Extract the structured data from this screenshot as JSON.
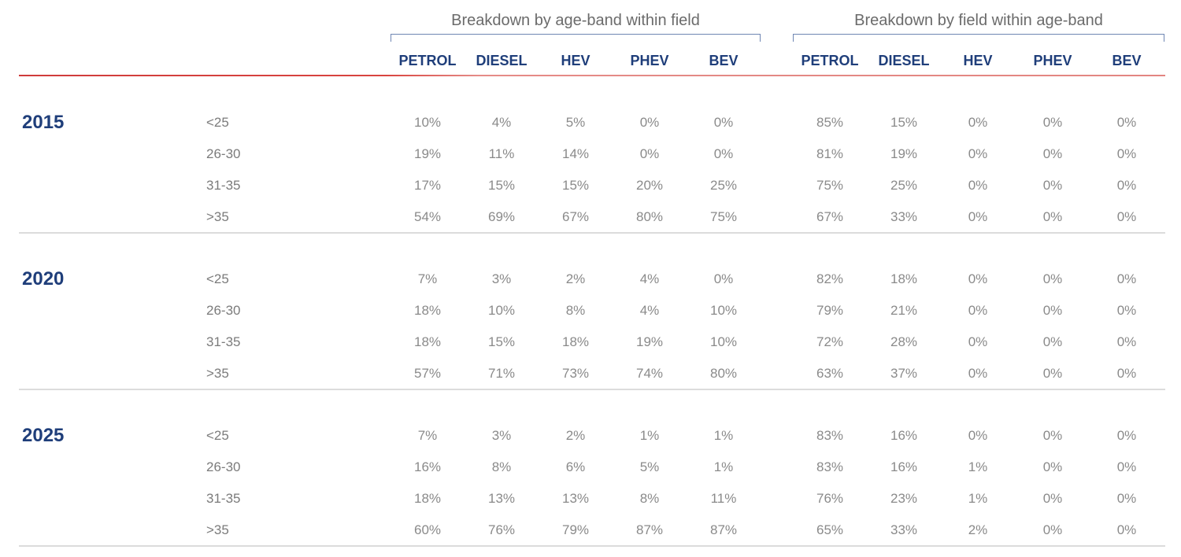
{
  "header": {
    "group_left_title": "Breakdown by age-band within field",
    "group_right_title": "Breakdown by field within age-band"
  },
  "chart_data": {
    "type": "table",
    "column_groups": [
      {
        "title": "Breakdown by age-band within field",
        "columns": [
          "PETROL",
          "DIESEL",
          "HEV",
          "PHEV",
          "BEV"
        ]
      },
      {
        "title": "Breakdown by field within age-band",
        "columns": [
          "PETROL",
          "DIESEL",
          "HEV",
          "PHEV",
          "BEV"
        ]
      }
    ],
    "sections": [
      {
        "year": "2015",
        "rows": [
          {
            "band": "<25",
            "values": [
              "10%",
              "4%",
              "5%",
              "0%",
              "0%",
              "85%",
              "15%",
              "0%",
              "0%",
              "0%"
            ]
          },
          {
            "band": "26-30",
            "values": [
              "19%",
              "11%",
              "14%",
              "0%",
              "0%",
              "81%",
              "19%",
              "0%",
              "0%",
              "0%"
            ]
          },
          {
            "band": "31-35",
            "values": [
              "17%",
              "15%",
              "15%",
              "20%",
              "25%",
              "75%",
              "25%",
              "0%",
              "0%",
              "0%"
            ]
          },
          {
            "band": ">35",
            "values": [
              "54%",
              "69%",
              "67%",
              "80%",
              "75%",
              "67%",
              "33%",
              "0%",
              "0%",
              "0%"
            ]
          }
        ]
      },
      {
        "year": "2020",
        "rows": [
          {
            "band": "<25",
            "values": [
              "7%",
              "3%",
              "2%",
              "4%",
              "0%",
              "82%",
              "18%",
              "0%",
              "0%",
              "0%"
            ]
          },
          {
            "band": "26-30",
            "values": [
              "18%",
              "10%",
              "8%",
              "4%",
              "10%",
              "79%",
              "21%",
              "0%",
              "0%",
              "0%"
            ]
          },
          {
            "band": "31-35",
            "values": [
              "18%",
              "15%",
              "18%",
              "19%",
              "10%",
              "72%",
              "28%",
              "0%",
              "0%",
              "0%"
            ]
          },
          {
            "band": ">35",
            "values": [
              "57%",
              "71%",
              "73%",
              "74%",
              "80%",
              "63%",
              "37%",
              "0%",
              "0%",
              "0%"
            ]
          }
        ]
      },
      {
        "year": "2025",
        "rows": [
          {
            "band": "<25",
            "values": [
              "7%",
              "3%",
              "2%",
              "1%",
              "1%",
              "83%",
              "16%",
              "0%",
              "0%",
              "0%"
            ]
          },
          {
            "band": "26-30",
            "values": [
              "16%",
              "8%",
              "6%",
              "5%",
              "1%",
              "83%",
              "16%",
              "1%",
              "0%",
              "0%"
            ]
          },
          {
            "band": "31-35",
            "values": [
              "18%",
              "13%",
              "13%",
              "8%",
              "11%",
              "76%",
              "23%",
              "1%",
              "0%",
              "0%"
            ]
          },
          {
            "band": ">35",
            "values": [
              "60%",
              "76%",
              "79%",
              "87%",
              "87%",
              "65%",
              "33%",
              "2%",
              "0%",
              "0%"
            ]
          }
        ]
      }
    ]
  },
  "colors": {
    "heading_blue": "#1f3e7a",
    "bracket_blue": "#6f86b3",
    "rule_red": "#d9443f",
    "value_gray": "#8a8a8a",
    "separator_gray": "#dcdcdc"
  }
}
